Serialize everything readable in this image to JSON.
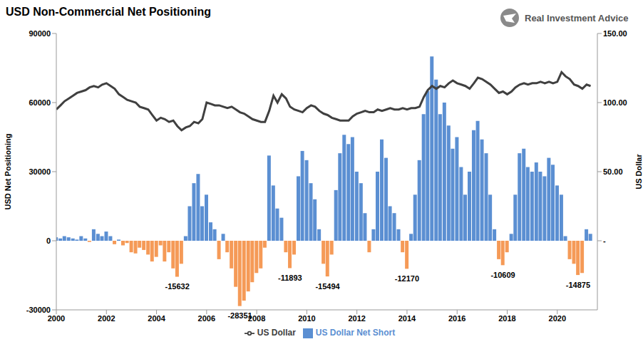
{
  "chart_data": {
    "type": "bar",
    "title": "USD Non-Commercial Net Positioning",
    "source": "Real Investment Advice",
    "y_label": "USD Net Positioning",
    "y2_label": "US Dollar",
    "grid": false,
    "legend": "bottom",
    "x": [
      2000,
      2000.17,
      2000.33,
      2000.5,
      2000.67,
      2000.83,
      2001,
      2001.17,
      2001.33,
      2001.5,
      2001.67,
      2001.83,
      2002,
      2002.17,
      2002.33,
      2002.5,
      2002.67,
      2002.83,
      2003,
      2003.17,
      2003.33,
      2003.5,
      2003.67,
      2003.83,
      2004,
      2004.17,
      2004.33,
      2004.5,
      2004.67,
      2004.83,
      2005,
      2005.17,
      2005.33,
      2005.5,
      2005.67,
      2005.83,
      2006,
      2006.17,
      2006.33,
      2006.5,
      2006.67,
      2006.83,
      2007,
      2007.17,
      2007.33,
      2007.5,
      2007.67,
      2007.83,
      2008,
      2008.17,
      2008.33,
      2008.5,
      2008.67,
      2008.83,
      2009,
      2009.17,
      2009.33,
      2009.5,
      2009.67,
      2009.83,
      2010,
      2010.17,
      2010.33,
      2010.5,
      2010.67,
      2010.83,
      2011,
      2011.17,
      2011.33,
      2011.5,
      2011.67,
      2011.83,
      2012,
      2012.17,
      2012.33,
      2012.5,
      2012.67,
      2012.83,
      2013,
      2013.17,
      2013.33,
      2013.5,
      2013.67,
      2013.83,
      2014,
      2014.17,
      2014.33,
      2014.5,
      2014.67,
      2014.83,
      2015,
      2015.17,
      2015.33,
      2015.5,
      2015.67,
      2015.83,
      2016,
      2016.17,
      2016.33,
      2016.5,
      2016.67,
      2016.83,
      2017,
      2017.17,
      2017.33,
      2017.5,
      2017.67,
      2017.83,
      2018,
      2018.17,
      2018.33,
      2018.5,
      2018.67,
      2018.83,
      2019,
      2019.17,
      2019.33,
      2019.5,
      2019.67,
      2019.83,
      2020,
      2020.17,
      2020.33,
      2020.5,
      2020.67,
      2020.83,
      2021,
      2021.17,
      2021.33
    ],
    "xlim": [
      2000,
      2021.6
    ],
    "xticks": [
      2000,
      2002,
      2004,
      2006,
      2008,
      2010,
      2012,
      2014,
      2016,
      2018,
      2020
    ],
    "ylim": [
      -30000,
      90000
    ],
    "yticks": [
      -30000,
      0,
      30000,
      60000,
      90000
    ],
    "y2lim": [
      -50,
      150
    ],
    "y2ticks": [
      {
        "value": 0,
        "label": "-"
      },
      {
        "value": 50,
        "label": "50.00"
      },
      {
        "value": 100,
        "label": "100.00"
      },
      {
        "value": 150,
        "label": "150.00"
      }
    ],
    "series": [
      {
        "name": "US Dollar Net Short",
        "type": "bar",
        "color": "#5B8FD2",
        "values": [
          1500,
          1000,
          2000,
          1500,
          1000,
          500,
          2000,
          1000,
          -500,
          5000,
          3000,
          2000,
          4000,
          2000,
          -1500,
          500,
          -2000,
          -1000,
          -5000,
          -5500,
          -3000,
          -4000,
          -6000,
          -9000,
          -7000,
          -2000,
          -9000,
          -5000,
          -12000,
          -15632,
          -10000,
          2000,
          15000,
          25000,
          29000,
          15000,
          20000,
          8000,
          5000,
          -8000,
          3000,
          -5000,
          -12000,
          -20000,
          -28351,
          -26000,
          -22000,
          -18000,
          -14000,
          -12000,
          -3000,
          37000,
          24000,
          14000,
          10000,
          -5000,
          -11893,
          -6000,
          28000,
          39000,
          35000,
          25000,
          18000,
          5000,
          -10000,
          -15494,
          -6000,
          22000,
          38000,
          46000,
          42000,
          45000,
          30000,
          25000,
          12000,
          -5000,
          5000,
          30000,
          44000,
          36000,
          15000,
          12000,
          5000,
          -5000,
          -12170,
          3000,
          20000,
          35000,
          55000,
          65000,
          80000,
          70000,
          55000,
          60000,
          50000,
          40000,
          45000,
          32000,
          20000,
          30000,
          48000,
          52000,
          44000,
          38000,
          20000,
          5000,
          -8000,
          -10609,
          -5000,
          3000,
          20000,
          38000,
          40000,
          32000,
          30000,
          34000,
          30000,
          28000,
          36000,
          33000,
          24000,
          20000,
          2000,
          -8000,
          -10000,
          -14875,
          -14000,
          5000,
          3000
        ],
        "colors": [
          "#5B8FD2",
          "#5B8FD2",
          "#5B8FD2",
          "#5B8FD2",
          "#5B8FD2",
          "#5B8FD2",
          "#5B8FD2",
          "#5B8FD2",
          "#F59A57",
          "#5B8FD2",
          "#5B8FD2",
          "#5B8FD2",
          "#5B8FD2",
          "#5B8FD2",
          "#F59A57",
          "#5B8FD2",
          "#F59A57",
          "#F59A57",
          "#F59A57",
          "#F59A57",
          "#F59A57",
          "#F59A57",
          "#F59A57",
          "#F59A57",
          "#F59A57",
          "#F59A57",
          "#F59A57",
          "#F59A57",
          "#F59A57",
          "#F59A57",
          "#F59A57",
          "#5B8FD2",
          "#5B8FD2",
          "#5B8FD2",
          "#5B8FD2",
          "#5B8FD2",
          "#5B8FD2",
          "#5B8FD2",
          "#5B8FD2",
          "#F59A57",
          "#5B8FD2",
          "#F59A57",
          "#F59A57",
          "#F59A57",
          "#F59A57",
          "#F59A57",
          "#F59A57",
          "#F59A57",
          "#F59A57",
          "#F59A57",
          "#F59A57",
          "#5B8FD2",
          "#5B8FD2",
          "#5B8FD2",
          "#5B8FD2",
          "#F59A57",
          "#F59A57",
          "#F59A57",
          "#5B8FD2",
          "#5B8FD2",
          "#5B8FD2",
          "#5B8FD2",
          "#5B8FD2",
          "#5B8FD2",
          "#F59A57",
          "#F59A57",
          "#F59A57",
          "#5B8FD2",
          "#5B8FD2",
          "#5B8FD2",
          "#5B8FD2",
          "#5B8FD2",
          "#5B8FD2",
          "#5B8FD2",
          "#5B8FD2",
          "#F59A57",
          "#5B8FD2",
          "#5B8FD2",
          "#5B8FD2",
          "#5B8FD2",
          "#5B8FD2",
          "#5B8FD2",
          "#5B8FD2",
          "#F59A57",
          "#F59A57",
          "#5B8FD2",
          "#5B8FD2",
          "#5B8FD2",
          "#5B8FD2",
          "#5B8FD2",
          "#5B8FD2",
          "#5B8FD2",
          "#5B8FD2",
          "#5B8FD2",
          "#5B8FD2",
          "#5B8FD2",
          "#5B8FD2",
          "#5B8FD2",
          "#5B8FD2",
          "#5B8FD2",
          "#5B8FD2",
          "#5B8FD2",
          "#5B8FD2",
          "#5B8FD2",
          "#5B8FD2",
          "#5B8FD2",
          "#F59A57",
          "#F59A57",
          "#F59A57",
          "#5B8FD2",
          "#5B8FD2",
          "#5B8FD2",
          "#5B8FD2",
          "#5B8FD2",
          "#5B8FD2",
          "#5B8FD2",
          "#5B8FD2",
          "#5B8FD2",
          "#5B8FD2",
          "#5B8FD2",
          "#5B8FD2",
          "#5B8FD2",
          "#5B8FD2",
          "#F59A57",
          "#F59A57",
          "#F59A57",
          "#F59A57",
          "#5B8FD2",
          "#5B8FD2"
        ]
      },
      {
        "name": "US Dollar",
        "type": "line",
        "axis": "y2",
        "color": "#404040",
        "values": [
          95,
          98,
          101,
          103,
          105,
          107,
          108,
          109,
          111,
          112,
          111,
          113,
          114,
          112,
          110,
          106,
          104,
          102,
          101,
          100,
          97,
          96,
          95,
          91,
          87,
          89,
          88,
          86,
          87,
          83,
          80,
          82,
          83,
          86,
          85,
          88,
          100,
          99,
          98,
          98,
          97,
          96,
          97,
          95,
          93,
          92,
          90,
          88,
          87,
          86,
          86,
          94,
          105,
          100,
          106,
          103,
          97,
          95,
          94,
          93,
          96,
          98,
          97,
          94,
          92,
          91,
          89,
          88,
          87,
          87,
          87,
          90,
          92,
          93,
          94,
          93,
          93,
          95,
          94,
          95,
          96,
          95,
          95,
          96,
          95,
          96,
          96,
          97,
          104,
          109,
          112,
          110,
          112,
          111,
          114,
          116,
          114,
          113,
          112,
          110,
          114,
          118,
          117,
          115,
          113,
          110,
          107,
          108,
          106,
          108,
          111,
          113,
          114,
          113,
          114,
          114,
          115,
          114,
          115,
          114,
          115,
          122,
          119,
          117,
          113,
          112,
          110,
          113,
          112
        ]
      }
    ],
    "annotations": [
      {
        "text": "-15632",
        "x": 2004.83,
        "y": -15632
      },
      {
        "text": "-28351",
        "x": 2007.33,
        "y": -28351
      },
      {
        "text": "-11893",
        "x": 2009.33,
        "y": -11893
      },
      {
        "text": "-15494",
        "x": 2010.83,
        "y": -15494
      },
      {
        "text": "-12170",
        "x": 2014,
        "y": -12170
      },
      {
        "text": "-10609",
        "x": 2017.83,
        "y": -10609
      },
      {
        "text": "-14875",
        "x": 2020.83,
        "y": -14875
      }
    ]
  }
}
